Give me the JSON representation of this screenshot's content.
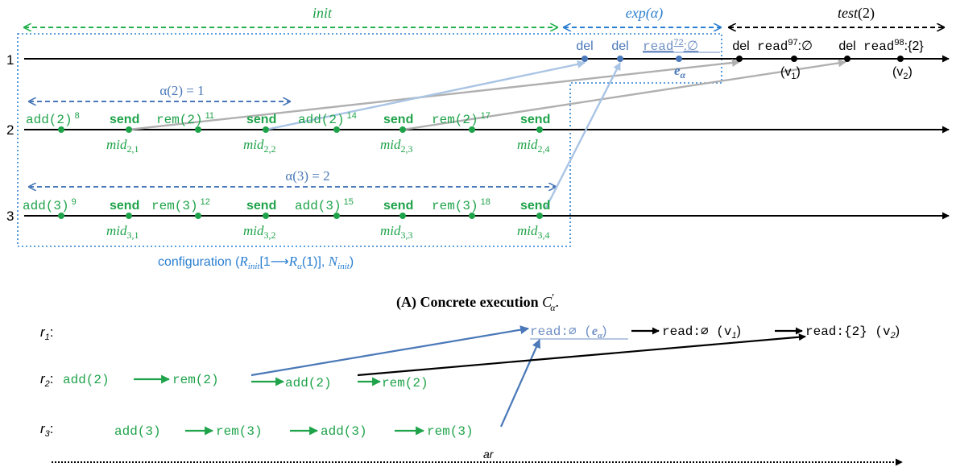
{
  "colors": {
    "green": "#1fa34a",
    "green_dashed": "#22b14c",
    "blue": "#2a7fd0",
    "steel_blue": "#4a78b8",
    "light_blue": "#a9c4e4",
    "gray": "#b0b0b0",
    "black": "#000000"
  },
  "top": {
    "ranges": {
      "init": "init",
      "exp": "exp",
      "exp_alpha": "α",
      "test": "test",
      "test_arg": "(2)"
    },
    "process_labels": [
      "1",
      "2",
      "3"
    ],
    "p1": {
      "del1": "del",
      "del2": "del",
      "read72": "read",
      "read72_sup": "72",
      "read72_val": ":∅",
      "e_alpha_e": "e",
      "e_alpha_sub": "α",
      "del3": "del",
      "read97": "read",
      "read97_sup": "97",
      "read97_val": ":∅",
      "del4": "del",
      "read98": "read",
      "read98_sup": "98",
      "read98_val": ":{2}",
      "v1": "(v",
      "v1_sub": "1",
      "v2": "(v",
      "v2_sub": "2",
      "close": ")"
    },
    "alpha2": {
      "text": "α(2) = 1"
    },
    "alpha3": {
      "text": "α(3) = 2"
    },
    "p2": {
      "ops": [
        {
          "op": "add(2)",
          "sup": "8"
        },
        {
          "op": "send",
          "sup": ""
        },
        {
          "op": "rem(2)",
          "sup": "11"
        },
        {
          "op": "send",
          "sup": ""
        },
        {
          "op": "add(2)",
          "sup": "14"
        },
        {
          "op": "send",
          "sup": ""
        },
        {
          "op": "rem(2)",
          "sup": "17"
        },
        {
          "op": "send",
          "sup": ""
        }
      ],
      "mids": [
        {
          "m": "mid",
          "s": "2,1"
        },
        {
          "m": "mid",
          "s": "2,2"
        },
        {
          "m": "mid",
          "s": "2,3"
        },
        {
          "m": "mid",
          "s": "2,4"
        }
      ]
    },
    "p3": {
      "ops": [
        {
          "op": "add(3)",
          "sup": "9"
        },
        {
          "op": "send",
          "sup": ""
        },
        {
          "op": "rem(3)",
          "sup": "12"
        },
        {
          "op": "send",
          "sup": ""
        },
        {
          "op": "add(3)",
          "sup": "15"
        },
        {
          "op": "send",
          "sup": ""
        },
        {
          "op": "rem(3)",
          "sup": "18"
        },
        {
          "op": "send",
          "sup": ""
        }
      ],
      "mids": [
        {
          "m": "mid",
          "s": "3,1"
        },
        {
          "m": "mid",
          "s": "3,2"
        },
        {
          "m": "mid",
          "s": "3,3"
        },
        {
          "m": "mid",
          "s": "3,4"
        }
      ]
    },
    "configuration": {
      "prefix": "configuration (",
      "R": "R",
      "R_sub": "init",
      "bracket": "[1⟶",
      "Ra": "R",
      "Ra_sub": "α",
      "after": "(1)], ",
      "N": "N",
      "N_sub": "init",
      "close": ")"
    }
  },
  "caption": {
    "text": "(A) Concrete execution ",
    "C": "C",
    "prime": "′",
    "sub": "α",
    "dot": "."
  },
  "bottom": {
    "r1": {
      "r": "r",
      "sub": "1",
      "colon": ":"
    },
    "r2": {
      "r": "r",
      "sub": "2",
      "colon": ":"
    },
    "r3": {
      "r": "r",
      "sub": "3",
      "colon": ":"
    },
    "row1": {
      "ea": "read:∅ (",
      "ea_e": "e",
      "ea_sub": "α",
      "ea_close": ")",
      "v1": "read:∅ (v",
      "v1_sub": "1",
      "v1_close": ")",
      "v2": "read:{2} (v",
      "v2_sub": "2",
      "v2_close": ")"
    },
    "row2": [
      "add(2)",
      "rem(2)",
      "add(2)",
      "rem(2)"
    ],
    "row3": [
      "add(3)",
      "rem(3)",
      "add(3)",
      "rem(3)"
    ],
    "ar": "ar"
  }
}
